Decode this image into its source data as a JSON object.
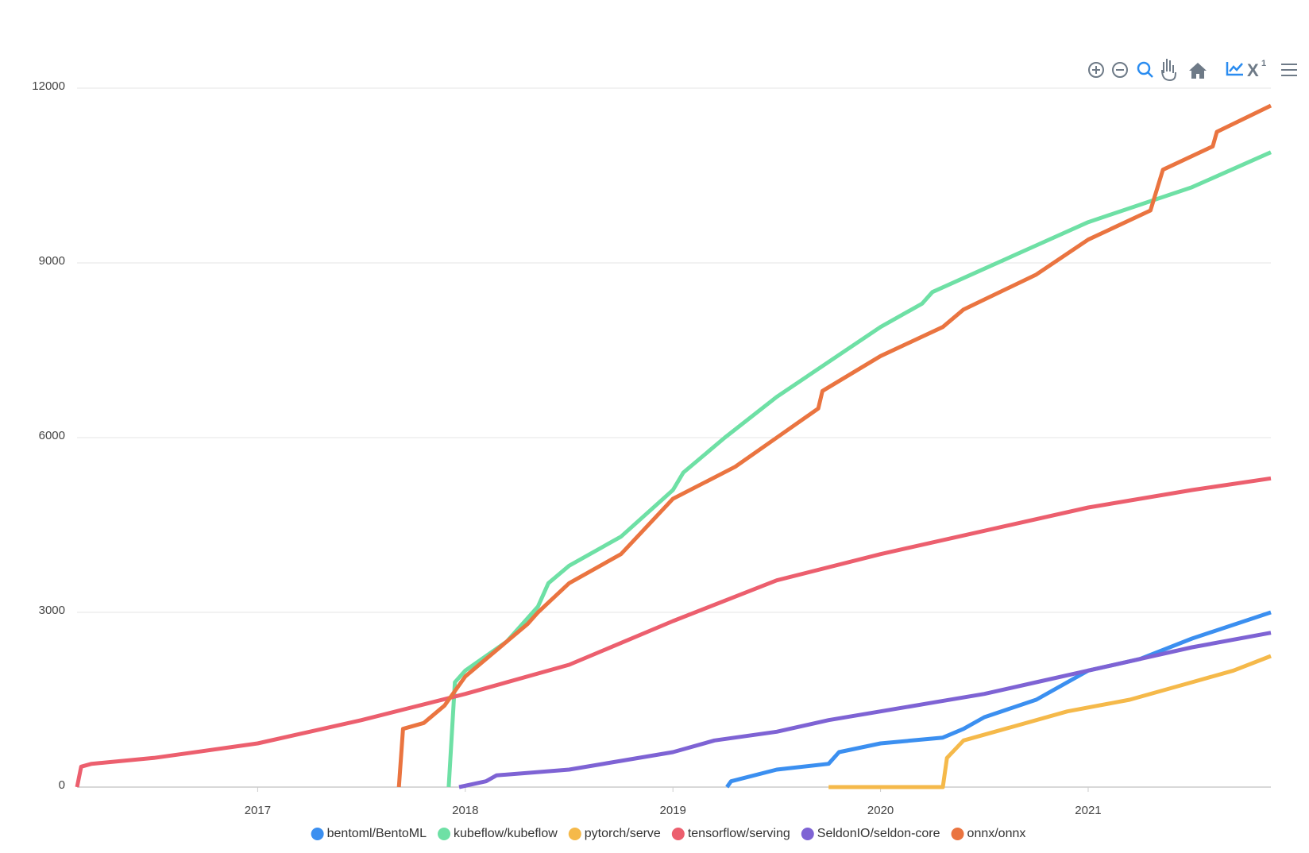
{
  "chart_data": {
    "type": "line",
    "xlim": [
      2016.13,
      2021.88
    ],
    "xticks": [
      2017,
      2018,
      2019,
      2020,
      2021
    ],
    "ylim": [
      0,
      12000
    ],
    "yticks": [
      0,
      3000,
      6000,
      9000,
      12000
    ],
    "grid": true,
    "legend": "bottom",
    "series": [
      {
        "name": "bentoml/BentoML",
        "color": "#3b8ff0",
        "x": [
          2019.26,
          2019.28,
          2019.5,
          2019.75,
          2019.8,
          2020.0,
          2020.3,
          2020.4,
          2020.5,
          2020.75,
          2021.0,
          2021.25,
          2021.5,
          2021.88
        ],
        "values": [
          0,
          100,
          300,
          400,
          600,
          750,
          850,
          1000,
          1200,
          1500,
          2000,
          2200,
          2550,
          3000
        ]
      },
      {
        "name": "kubeflow/kubeflow",
        "color": "#6ee0a5",
        "x": [
          2017.92,
          2017.95,
          2018.0,
          2018.2,
          2018.35,
          2018.4,
          2018.5,
          2018.75,
          2019.0,
          2019.05,
          2019.25,
          2019.5,
          2019.75,
          2020.0,
          2020.05,
          2020.2,
          2020.25,
          2020.5,
          2020.75,
          2021.0,
          2021.25,
          2021.5,
          2021.88
        ],
        "values": [
          0,
          1800,
          2000,
          2500,
          3100,
          3500,
          3800,
          4300,
          5100,
          5400,
          6000,
          6700,
          7300,
          7900,
          8000,
          8300,
          8500,
          8900,
          9300,
          9700,
          10000,
          10300,
          10900
        ]
      },
      {
        "name": "pytorch/serve",
        "color": "#f5b94a",
        "x": [
          2019.75,
          2020.3,
          2020.32,
          2020.4,
          2020.6,
          2020.9,
          2021.2,
          2021.5,
          2021.7,
          2021.88
        ],
        "values": [
          0,
          0,
          500,
          800,
          1000,
          1300,
          1500,
          1800,
          2000,
          2250
        ]
      },
      {
        "name": "tensorflow/serving",
        "color": "#ec5f6e",
        "x": [
          2016.13,
          2016.15,
          2016.2,
          2016.5,
          2017.0,
          2017.5,
          2018.0,
          2018.5,
          2019.0,
          2019.5,
          2020.0,
          2020.5,
          2021.0,
          2021.5,
          2021.88
        ],
        "values": [
          0,
          350,
          400,
          500,
          750,
          1150,
          1600,
          2100,
          2850,
          3550,
          4000,
          4400,
          4800,
          5100,
          5300
        ]
      },
      {
        "name": "SeldonIO/seldon-core",
        "color": "#7e63d4",
        "x": [
          2017.97,
          2018.1,
          2018.15,
          2018.5,
          2018.75,
          2019.0,
          2019.2,
          2019.5,
          2019.75,
          2020.0,
          2020.25,
          2020.5,
          2020.75,
          2021.0,
          2021.25,
          2021.5,
          2021.88
        ],
        "values": [
          0,
          100,
          200,
          300,
          450,
          600,
          800,
          950,
          1150,
          1300,
          1450,
          1600,
          1800,
          2000,
          2200,
          2400,
          2650
        ]
      },
      {
        "name": "onnx/onnx",
        "color": "#ea7440",
        "x": [
          2017.68,
          2017.7,
          2017.8,
          2017.9,
          2018.0,
          2018.3,
          2018.35,
          2018.5,
          2018.75,
          2019.0,
          2019.3,
          2019.5,
          2019.7,
          2019.72,
          2020.0,
          2020.3,
          2020.4,
          2020.75,
          2021.0,
          2021.3,
          2021.36,
          2021.6,
          2021.62,
          2021.88
        ],
        "values": [
          0,
          1000,
          1100,
          1400,
          1900,
          2800,
          3000,
          3500,
          4000,
          4950,
          5500,
          6000,
          6500,
          6800,
          7400,
          7900,
          8200,
          8800,
          9400,
          9900,
          10600,
          11000,
          11250,
          11700
        ]
      }
    ]
  }
}
